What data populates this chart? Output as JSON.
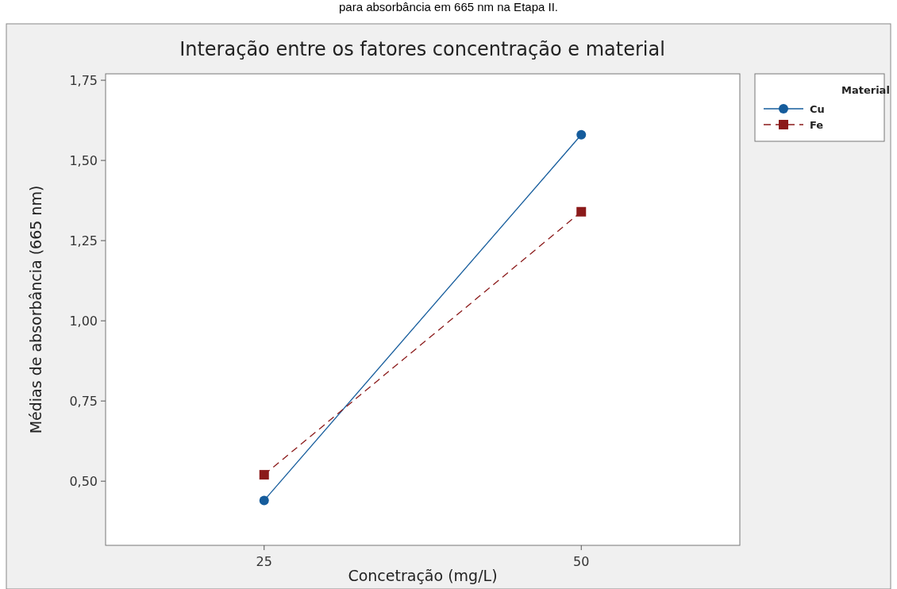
{
  "chart_data": {
    "type": "line",
    "title": "Interação entre os fatores concentração e material",
    "xlabel": "Concetração (mg/L)",
    "ylabel": "Médias de absorbância (665 nm)",
    "legend_title": "Material",
    "annotations": [
      "para absorbância em 665 nm na Etapa II."
    ],
    "x": [
      25,
      50
    ],
    "xlim": [
      12.5,
      62.5
    ],
    "xticks": [
      25,
      50
    ],
    "ylim": [
      0.3,
      1.77
    ],
    "yticks": [
      {
        "value": 0.5,
        "label": "0,50"
      },
      {
        "value": 0.75,
        "label": "0,75"
      },
      {
        "value": 1,
        "label": "1,00"
      },
      {
        "value": 1.25,
        "label": "1,25"
      },
      {
        "value": 1.5,
        "label": "1,50"
      },
      {
        "value": 1.75,
        "label": "1,75"
      }
    ],
    "grid": false,
    "legend": "right",
    "series": [
      {
        "name": "Cu",
        "color": "#155c9c",
        "values": [
          0.44,
          1.58
        ],
        "marker": "circle",
        "line_style": "solid"
      },
      {
        "name": "Fe",
        "color": "#8b1a1a",
        "values": [
          0.52,
          1.34
        ],
        "marker": "square",
        "line_style": "dashed"
      }
    ]
  }
}
